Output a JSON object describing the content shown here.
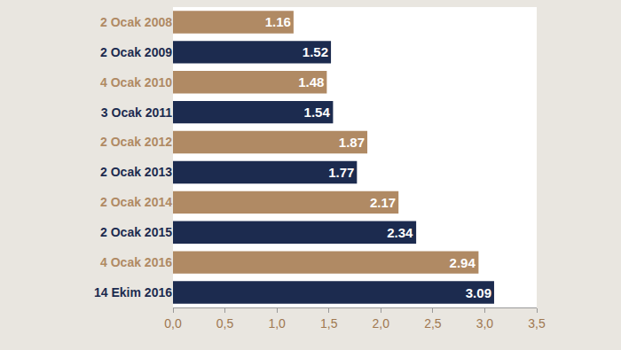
{
  "chart_data": {
    "type": "bar",
    "orientation": "horizontal",
    "categories": [
      "2 Ocak 2008",
      "2 Ocak 2009",
      "4 Ocak 2010",
      "3 Ocak 2011",
      "2 Ocak 2012",
      "2 Ocak 2013",
      "2 Ocak 2014",
      "2 Ocak 2015",
      "4 Ocak 2016",
      "14 Ekim 2016"
    ],
    "values": [
      1.16,
      1.52,
      1.48,
      1.54,
      1.87,
      1.77,
      2.17,
      2.34,
      2.94,
      3.09
    ],
    "colors": [
      "#b08a64",
      "#1c2b4f",
      "#b08a64",
      "#1c2b4f",
      "#b08a64",
      "#1c2b4f",
      "#b08a64",
      "#1c2b4f",
      "#b08a64",
      "#1c2b4f"
    ],
    "data_labels": true,
    "xlim": [
      0,
      3.5
    ],
    "xticks": [
      {
        "value": 0,
        "label": "0,0"
      },
      {
        "value": 0.5,
        "label": "0,5"
      },
      {
        "value": 1,
        "label": "1,0"
      },
      {
        "value": 1.5,
        "label": "1,5"
      },
      {
        "value": 2,
        "label": "2,0"
      },
      {
        "value": 2.5,
        "label": "2,5"
      },
      {
        "value": 3,
        "label": "3,0"
      },
      {
        "value": 3.5,
        "label": "3,5"
      }
    ],
    "grid": false
  }
}
